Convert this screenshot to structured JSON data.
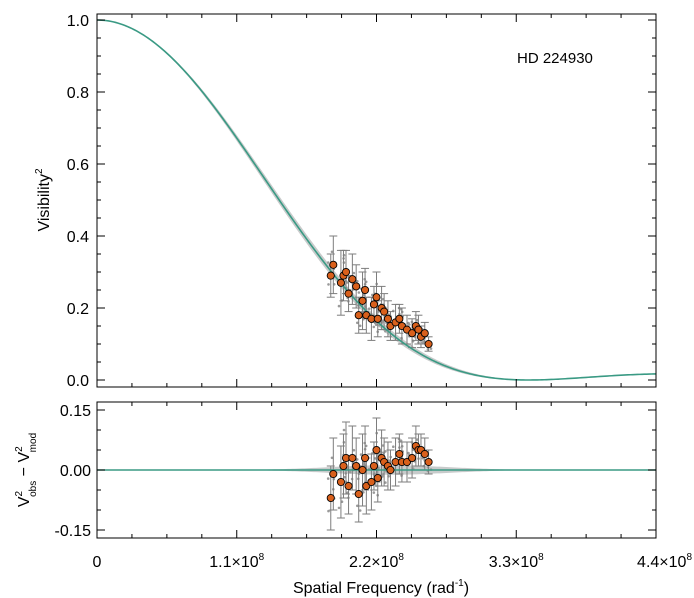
{
  "chart_data": [
    {
      "type": "scatter",
      "panel": "top",
      "annotation": "HD 224930",
      "ylabel_main": "Visibility",
      "ylabel_sup": "2",
      "xlim": [
        0,
        440000000
      ],
      "ylim": [
        0,
        1.0
      ],
      "yticks": [
        {
          "v": 0.0,
          "label": "0.0"
        },
        {
          "v": 0.2,
          "label": "0.2"
        },
        {
          "v": 0.4,
          "label": "0.4"
        },
        {
          "v": 0.6,
          "label": "0.6"
        },
        {
          "v": 0.8,
          "label": "0.8"
        },
        {
          "v": 1.0,
          "label": "1.0"
        }
      ],
      "model": {
        "type": "uniform-disk",
        "theta_mas": 0.74,
        "lambda_um": 2.15,
        "limb_darkening_mu": 0.0
      },
      "color": "#3a9a84",
      "band_color": "#c8cbcb",
      "points": [
        {
          "x": 184000000,
          "y": 0.29,
          "err": 0.06
        },
        {
          "x": 186000000,
          "y": 0.32,
          "err": 0.08
        },
        {
          "x": 192000000,
          "y": 0.27,
          "err": 0.09
        },
        {
          "x": 194000000,
          "y": 0.29,
          "err": 0.07
        },
        {
          "x": 196000000,
          "y": 0.3,
          "err": 0.06
        },
        {
          "x": 198000000,
          "y": 0.24,
          "err": 0.05
        },
        {
          "x": 201000000,
          "y": 0.28,
          "err": 0.07
        },
        {
          "x": 204000000,
          "y": 0.26,
          "err": 0.06
        },
        {
          "x": 206000000,
          "y": 0.18,
          "err": 0.05
        },
        {
          "x": 209000000,
          "y": 0.22,
          "err": 0.08
        },
        {
          "x": 211000000,
          "y": 0.25,
          "err": 0.06
        },
        {
          "x": 212000000,
          "y": 0.18,
          "err": 0.05
        },
        {
          "x": 216000000,
          "y": 0.17,
          "err": 0.06
        },
        {
          "x": 218000000,
          "y": 0.21,
          "err": 0.05
        },
        {
          "x": 220000000,
          "y": 0.23,
          "err": 0.07
        },
        {
          "x": 221000000,
          "y": 0.17,
          "err": 0.05
        },
        {
          "x": 224000000,
          "y": 0.2,
          "err": 0.06
        },
        {
          "x": 226000000,
          "y": 0.19,
          "err": 0.05
        },
        {
          "x": 229000000,
          "y": 0.17,
          "err": 0.05
        },
        {
          "x": 231000000,
          "y": 0.15,
          "err": 0.04
        },
        {
          "x": 235000000,
          "y": 0.16,
          "err": 0.05
        },
        {
          "x": 238000000,
          "y": 0.17,
          "err": 0.04
        },
        {
          "x": 240000000,
          "y": 0.15,
          "err": 0.05
        },
        {
          "x": 244000000,
          "y": 0.14,
          "err": 0.04
        },
        {
          "x": 248000000,
          "y": 0.13,
          "err": 0.04
        },
        {
          "x": 251000000,
          "y": 0.15,
          "err": 0.04
        },
        {
          "x": 253000000,
          "y": 0.14,
          "err": 0.04
        },
        {
          "x": 255000000,
          "y": 0.12,
          "err": 0.03
        },
        {
          "x": 258000000,
          "y": 0.13,
          "err": 0.03
        },
        {
          "x": 261000000,
          "y": 0.1,
          "err": 0.02
        }
      ]
    },
    {
      "type": "scatter",
      "panel": "bottom",
      "ylabel": {
        "V_top": "V",
        "sup1": "2",
        "sub1": "obs",
        "minus": " − ",
        "V_bot": "V",
        "sup2": "2",
        "sub2": "mod"
      },
      "xlabel": "Spatial Frequency (rad",
      "xlabel_sup": "-1",
      "xlabel_close": ")",
      "xlim": [
        0,
        440000000
      ],
      "ylim": [
        -0.17,
        0.17
      ],
      "yticks": [
        {
          "v": -0.15,
          "label": "-0.15"
        },
        {
          "v": 0.0,
          "label": "0.00"
        },
        {
          "v": 0.15,
          "label": "0.15"
        }
      ],
      "xticks": [
        {
          "v": 0,
          "mant": "0",
          "exp": ""
        },
        {
          "v": 110000000,
          "mant": "1.1×10",
          "exp": "8"
        },
        {
          "v": 220000000,
          "mant": "2.2×10",
          "exp": "8"
        },
        {
          "v": 330000000,
          "mant": "3.3×10",
          "exp": "8"
        },
        {
          "v": 440000000,
          "mant": "4.4×10",
          "exp": "8"
        }
      ],
      "points": [
        {
          "x": 184000000,
          "y": -0.07,
          "err": 0.08
        },
        {
          "x": 186000000,
          "y": -0.01,
          "err": 0.09
        },
        {
          "x": 192000000,
          "y": -0.03,
          "err": 0.09
        },
        {
          "x": 194000000,
          "y": 0.01,
          "err": 0.08
        },
        {
          "x": 196000000,
          "y": 0.03,
          "err": 0.09
        },
        {
          "x": 198000000,
          "y": -0.04,
          "err": 0.07
        },
        {
          "x": 201000000,
          "y": 0.03,
          "err": 0.08
        },
        {
          "x": 204000000,
          "y": 0.01,
          "err": 0.07
        },
        {
          "x": 206000000,
          "y": -0.06,
          "err": 0.07
        },
        {
          "x": 209000000,
          "y": 0.0,
          "err": 0.09
        },
        {
          "x": 211000000,
          "y": 0.03,
          "err": 0.08
        },
        {
          "x": 212000000,
          "y": -0.04,
          "err": 0.07
        },
        {
          "x": 216000000,
          "y": -0.03,
          "err": 0.07
        },
        {
          "x": 218000000,
          "y": 0.01,
          "err": 0.06
        },
        {
          "x": 220000000,
          "y": 0.05,
          "err": 0.08
        },
        {
          "x": 221000000,
          "y": -0.02,
          "err": 0.06
        },
        {
          "x": 224000000,
          "y": 0.03,
          "err": 0.07
        },
        {
          "x": 226000000,
          "y": 0.02,
          "err": 0.06
        },
        {
          "x": 229000000,
          "y": 0.01,
          "err": 0.06
        },
        {
          "x": 231000000,
          "y": 0.0,
          "err": 0.05
        },
        {
          "x": 235000000,
          "y": 0.02,
          "err": 0.06
        },
        {
          "x": 238000000,
          "y": 0.04,
          "err": 0.05
        },
        {
          "x": 240000000,
          "y": 0.02,
          "err": 0.05
        },
        {
          "x": 244000000,
          "y": 0.02,
          "err": 0.05
        },
        {
          "x": 248000000,
          "y": 0.03,
          "err": 0.05
        },
        {
          "x": 251000000,
          "y": 0.06,
          "err": 0.05
        },
        {
          "x": 253000000,
          "y": 0.05,
          "err": 0.04
        },
        {
          "x": 255000000,
          "y": 0.05,
          "err": 0.04
        },
        {
          "x": 258000000,
          "y": 0.04,
          "err": 0.04
        },
        {
          "x": 261000000,
          "y": 0.02,
          "err": 0.03
        }
      ]
    }
  ]
}
